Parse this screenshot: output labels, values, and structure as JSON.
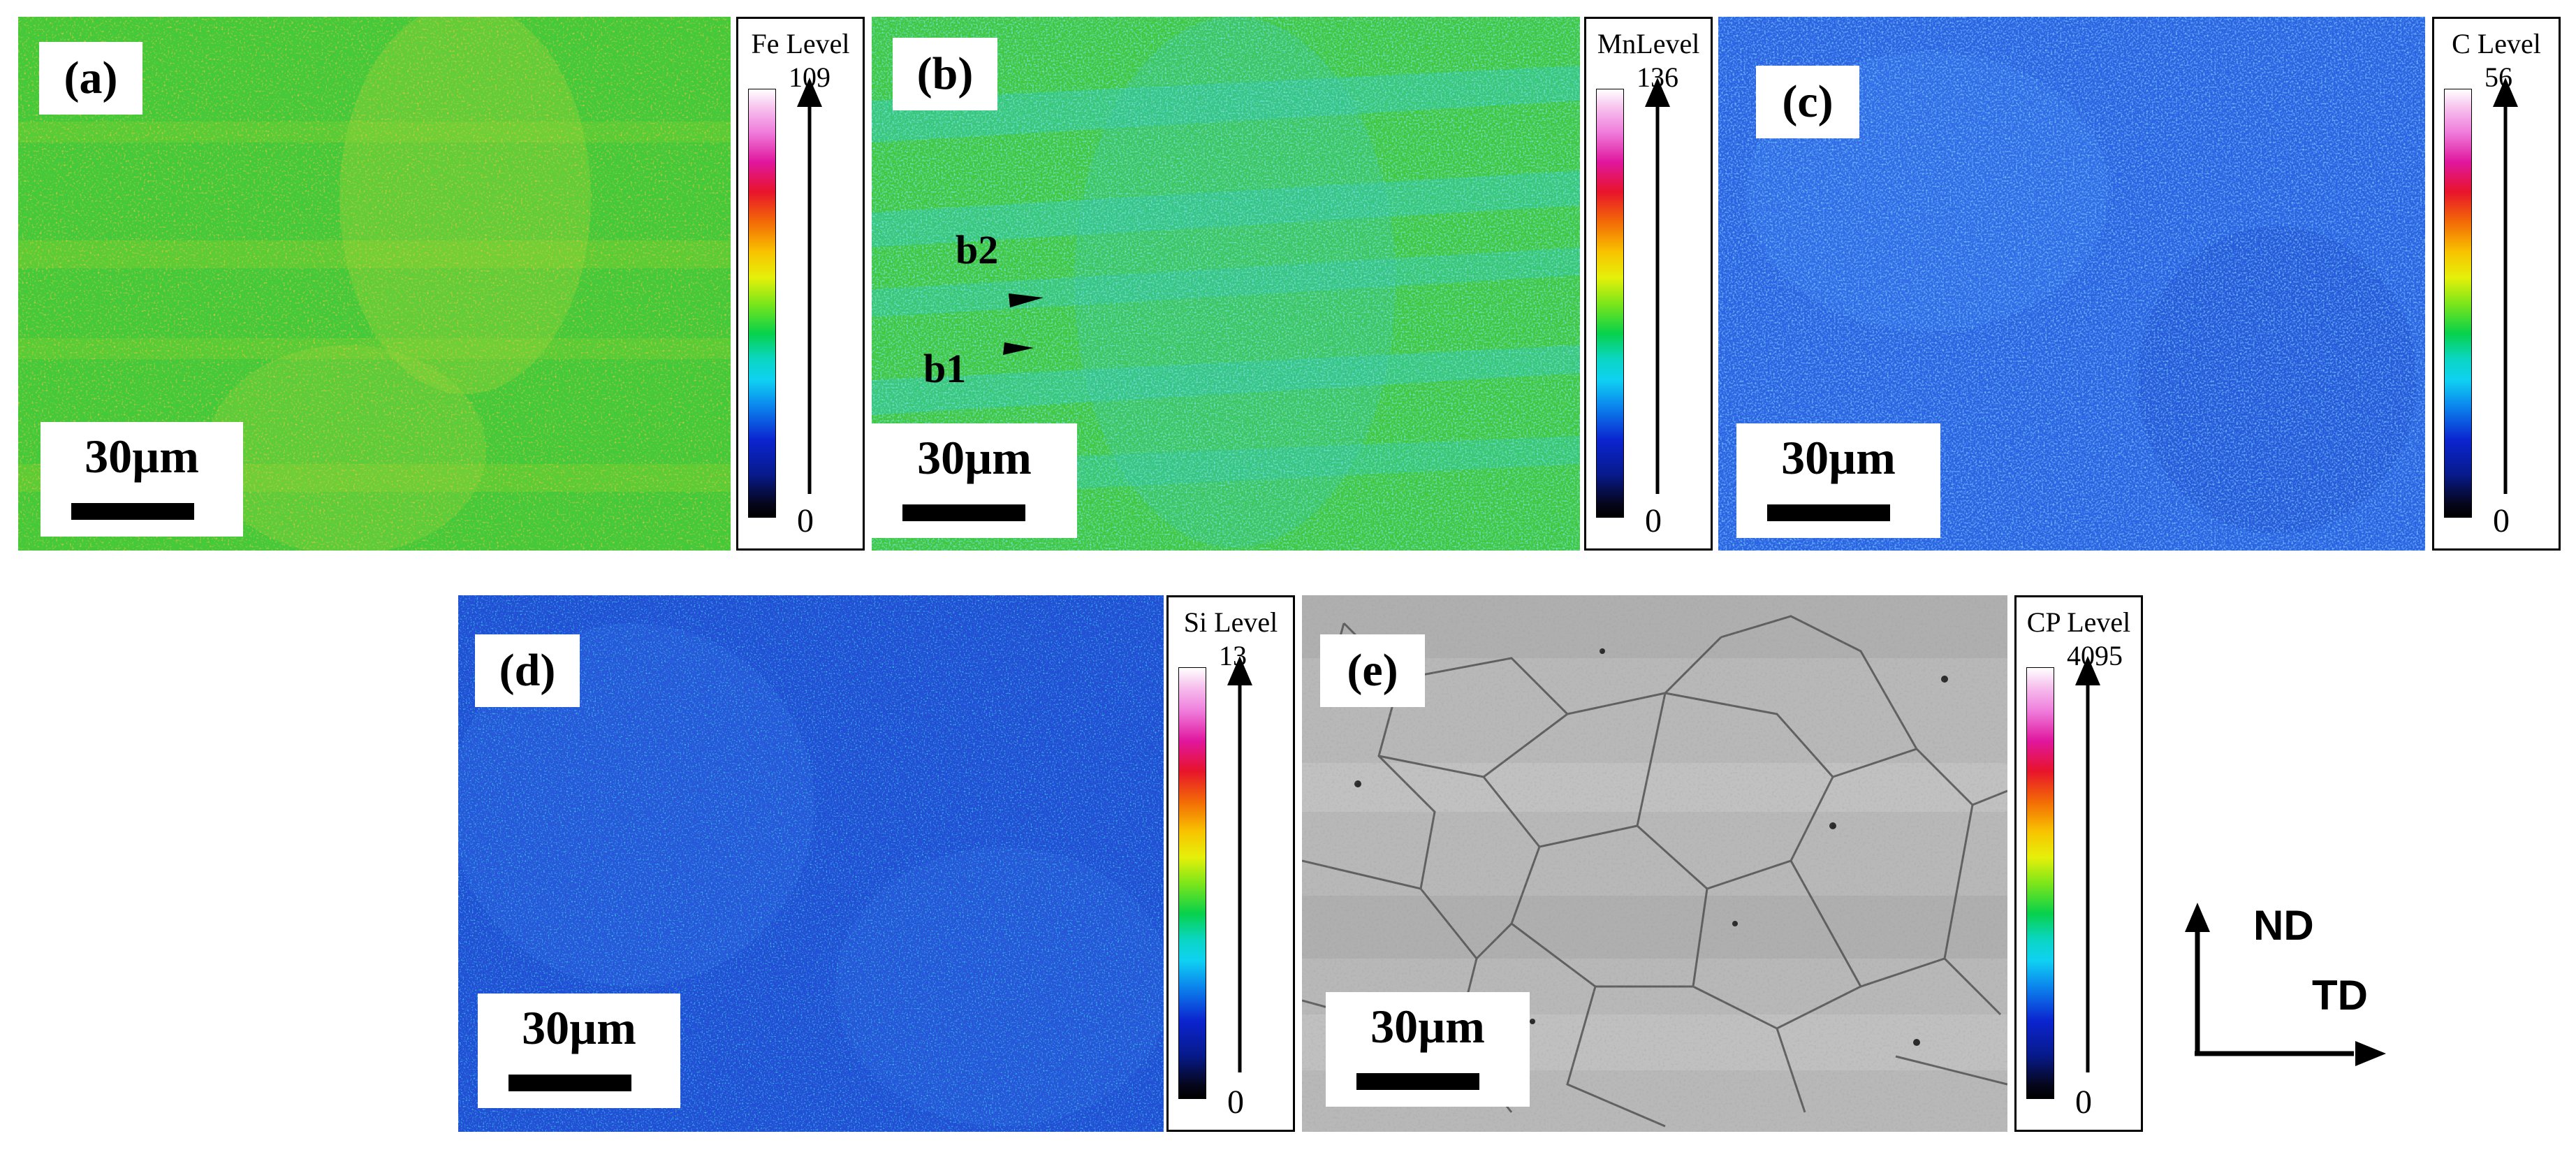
{
  "panels": [
    {
      "id": "a",
      "label": "(a)",
      "scale": "30µm",
      "legend_title": "Fe Level",
      "legend_max": "109",
      "legend_min": "0"
    },
    {
      "id": "b",
      "label": "(b)",
      "scale": "30µm",
      "legend_title": "MnLevel",
      "legend_max": "136",
      "legend_min": "0"
    },
    {
      "id": "c",
      "label": "(c)",
      "scale": "30µm",
      "legend_title": "C  Level",
      "legend_max": "56",
      "legend_min": "0"
    },
    {
      "id": "d",
      "label": "(d)",
      "scale": "30µm",
      "legend_title": "Si Level",
      "legend_max": "13",
      "legend_min": "0"
    },
    {
      "id": "e",
      "label": "(e)",
      "scale": "30µm",
      "legend_title": "CP Level",
      "legend_max": "4095",
      "legend_min": "0"
    }
  ],
  "annotations": {
    "b1": "b1",
    "b2": "b2"
  },
  "axes": {
    "nd": "ND",
    "td": "TD"
  },
  "colors": {
    "green_base": "#3ec83c",
    "blue_base": "#2a5fe0",
    "gray_base": "#b4b4b4"
  }
}
